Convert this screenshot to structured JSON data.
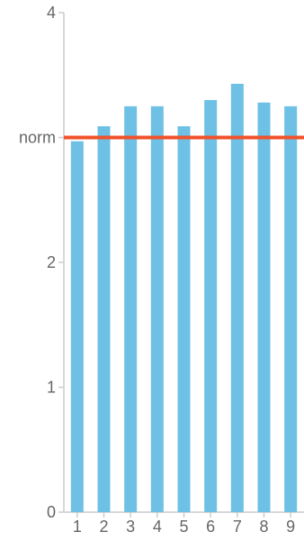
{
  "chart_data": {
    "type": "bar",
    "categories": [
      "1",
      "2",
      "3",
      "4",
      "5",
      "6",
      "7",
      "8",
      "9"
    ],
    "values": [
      2.97,
      3.09,
      3.25,
      3.25,
      3.09,
      3.3,
      3.43,
      3.28,
      3.25
    ],
    "ylim": [
      0,
      4
    ],
    "yticks": [
      0,
      1,
      2,
      4
    ],
    "reference_line": {
      "label": "norm",
      "value": 3.0
    },
    "grid": false,
    "colors": {
      "bar": "#6ec1e4",
      "reference_line": "#f0522a",
      "axis": "#cccccc",
      "text": "#666666"
    }
  }
}
